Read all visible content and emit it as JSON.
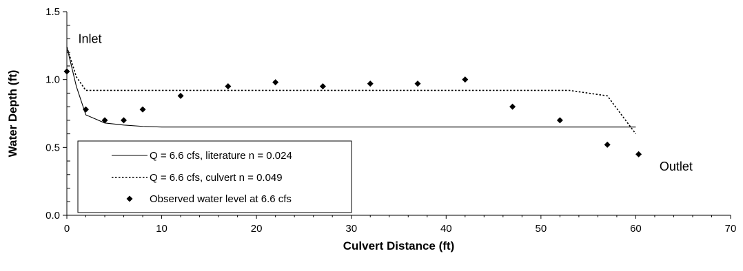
{
  "chart_data": {
    "type": "line",
    "xlabel": "Culvert Distance (ft)",
    "ylabel": "Water Depth (ft)",
    "xlim": [
      0,
      70
    ],
    "ylim": [
      0,
      1.5
    ],
    "x_ticks": [
      0,
      10,
      20,
      30,
      40,
      50,
      60,
      70
    ],
    "y_ticks": [
      0.0,
      0.5,
      1.0,
      1.5
    ],
    "x_tick_labels": [
      "0",
      "10",
      "20",
      "30",
      "40",
      "50",
      "60",
      "70"
    ],
    "y_tick_labels": [
      "0.0",
      "0.5",
      "1.0",
      "1.5"
    ],
    "grid": false,
    "legend_position": "bottom-left",
    "series": [
      {
        "name": "Q = 6.6 cfs, literature n = 0.024",
        "style": "solid",
        "x": [
          0,
          1,
          2,
          4,
          6,
          8,
          10,
          15,
          20,
          30,
          40,
          50,
          60
        ],
        "y": [
          1.24,
          0.95,
          0.74,
          0.68,
          0.665,
          0.655,
          0.65,
          0.65,
          0.65,
          0.65,
          0.65,
          0.65,
          0.65
        ]
      },
      {
        "name": "Q = 6.6 cfs, culvert n = 0.049",
        "style": "dotted",
        "x": [
          0,
          1,
          2,
          10,
          20,
          30,
          40,
          50,
          53,
          57,
          60
        ],
        "y": [
          1.24,
          1.02,
          0.92,
          0.92,
          0.92,
          0.92,
          0.92,
          0.92,
          0.92,
          0.88,
          0.6
        ]
      },
      {
        "name": "Observed water level at 6.6 cfs",
        "style": "markers",
        "x": [
          0,
          2,
          4,
          6,
          8,
          12,
          17,
          22,
          27,
          32,
          37,
          42,
          47,
          52,
          57,
          60.3
        ],
        "y": [
          1.06,
          0.78,
          0.7,
          0.7,
          0.78,
          0.88,
          0.95,
          0.98,
          0.95,
          0.97,
          0.97,
          1.0,
          0.8,
          0.7,
          0.52,
          0.45
        ]
      }
    ],
    "annotations": [
      {
        "text": "Inlet",
        "x": 1.2,
        "y": 1.27
      },
      {
        "text": "Outlet",
        "x": 62.5,
        "y": 0.33
      }
    ]
  },
  "colors": {
    "series_line": "#000000",
    "axis": "#000000",
    "background": "#ffffff"
  }
}
